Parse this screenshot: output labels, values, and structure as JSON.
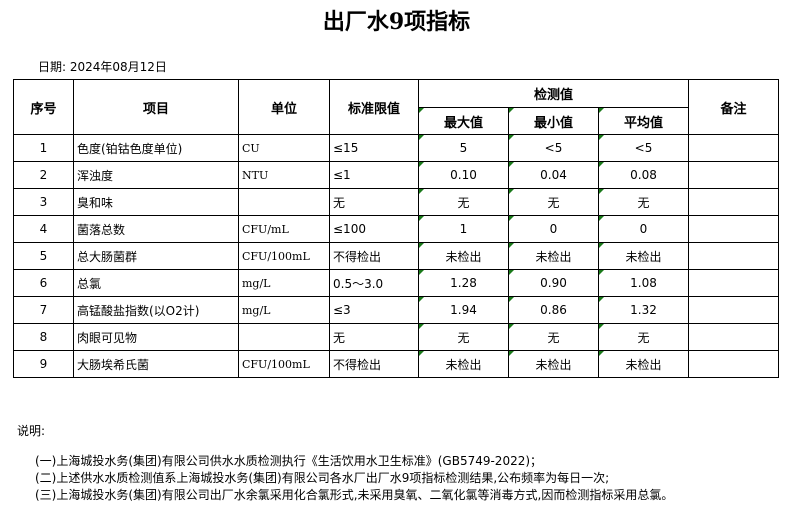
{
  "title": "出厂水9项指标",
  "date": "日期: 2024年08月12日",
  "headers": {
    "no": "序号",
    "item": "项目",
    "unit": "单位",
    "limit": "标准限值",
    "measured": "检测值",
    "max": "最大值",
    "min": "最小值",
    "avg": "平均值",
    "remark": "备注"
  },
  "rows": [
    {
      "no": "1",
      "item": "色度(铂钴色度单位)",
      "unit": "CU",
      "limit": "≤15",
      "max": "5",
      "min": "<5",
      "avg": "<5"
    },
    {
      "no": "2",
      "item": "浑浊度",
      "unit": "NTU",
      "limit": "≤1",
      "max": "0.10",
      "min": "0.04",
      "avg": "0.08"
    },
    {
      "no": "3",
      "item": "臭和味",
      "unit": "",
      "limit": "无",
      "max": "无",
      "min": "无",
      "avg": "无"
    },
    {
      "no": "4",
      "item": "菌落总数",
      "unit": "CFU/mL",
      "limit": "≤100",
      "max": "1",
      "min": "0",
      "avg": "0"
    },
    {
      "no": "5",
      "item": "总大肠菌群",
      "unit": "CFU/100mL",
      "limit": "不得检出",
      "max": "未检出",
      "min": "未检出",
      "avg": "未检出"
    },
    {
      "no": "6",
      "item": "总氯",
      "unit": "mg/L",
      "limit": "0.5～3.0",
      "max": "1.28",
      "min": "0.90",
      "avg": "1.08"
    },
    {
      "no": "7",
      "item": "高锰酸盐指数(以O2计)",
      "unit": "mg/L",
      "limit": "≤3",
      "max": "1.94",
      "min": "0.86",
      "avg": "1.32"
    },
    {
      "no": "8",
      "item": "肉眼可见物",
      "unit": "",
      "limit": "无",
      "max": "无",
      "min": "无",
      "avg": "无"
    },
    {
      "no": "9",
      "item": "大肠埃希氏菌",
      "unit": "CFU/100mL",
      "limit": "不得检出",
      "max": "未检出",
      "min": "未检出",
      "avg": "未检出"
    }
  ],
  "notes_label": "说明:",
  "notes": [
    "(一)上海城投水务(集团)有限公司供水水质检测执行《生活饮用水卫生标准》(GB5749-2022)；",
    "(二)上述供水水质检测值系上海城投水务(集团)有限公司各水厂出厂水9项指标检测结果,公布频率为每日一次;",
    "(三)上海城投水务(集团)有限公司出厂水余氯采用化合氯形式,未采用臭氧、二氧化氯等消毒方式,因而检测指标采用总氯。"
  ],
  "colors": {
    "text_marker": "#1a7a1a"
  }
}
